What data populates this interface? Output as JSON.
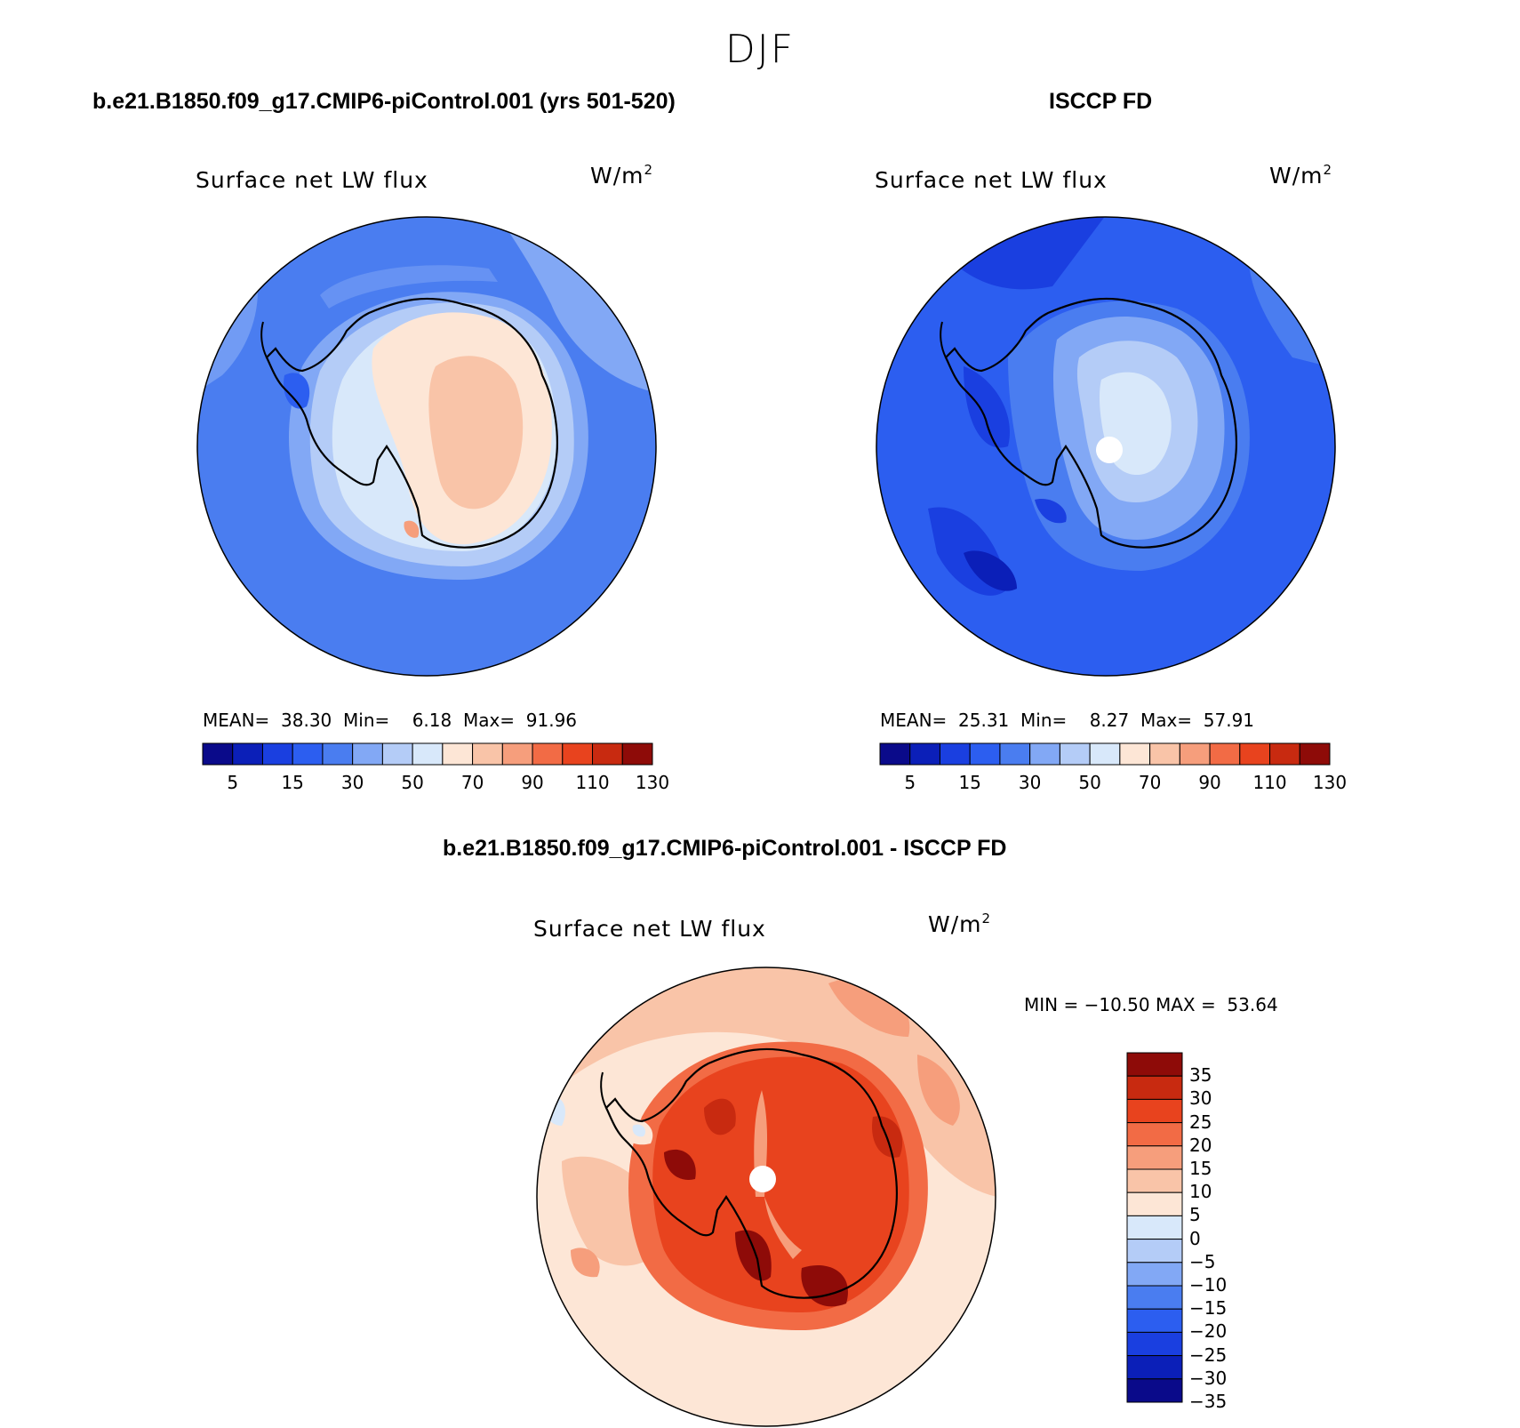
{
  "figure": {
    "season": "DJF"
  },
  "palette": {
    "levels14": [
      "#0a0a8a",
      "#0b1fb8",
      "#1a3fe0",
      "#2c5ef0",
      "#4a7df0",
      "#82a8f5",
      "#b4ccf7",
      "#d8e8fa",
      "#fde6d6",
      "#f9c4a8",
      "#f69e7c",
      "#f26b45",
      "#e8431e",
      "#c82a10",
      "#8e0b08"
    ],
    "diff": [
      "#0a0a8a",
      "#0b1fb8",
      "#1a3fe0",
      "#2c5ef0",
      "#4a7df0",
      "#82a8f5",
      "#b4ccf7",
      "#d8e8fa",
      "#fde6d6",
      "#f9c4a8",
      "#f69e7c",
      "#f26b45",
      "#e8431e",
      "#c82a10",
      "#8e0b08"
    ]
  },
  "panels": [
    {
      "id": "model",
      "case_title": "b.e21.B1850.f09_g17.CMIP6-piControl.001 (yrs 501-520)",
      "var_title": "Surface net LW flux",
      "units_base": "W/m",
      "units_exp": "2",
      "stats": {
        "mean_label": "MEAN=",
        "mean": "38.30",
        "min_label": "Min=",
        "min": "6.18",
        "max_label": "Max=",
        "max": "91.96"
      },
      "colorbar_ticks": [
        "5",
        "15",
        "30",
        "50",
        "70",
        "90",
        "110",
        "130"
      ]
    },
    {
      "id": "obs",
      "case_title": "ISCCP FD",
      "var_title": "Surface net LW flux",
      "units_base": "W/m",
      "units_exp": "2",
      "stats": {
        "mean_label": "MEAN=",
        "mean": "25.31",
        "min_label": "Min=",
        "min": "8.27",
        "max_label": "Max=",
        "max": "57.91"
      },
      "colorbar_ticks": [
        "5",
        "15",
        "30",
        "50",
        "70",
        "90",
        "110",
        "130"
      ]
    }
  ],
  "diff_panel": {
    "case_title": "b.e21.B1850.f09_g17.CMIP6-piControl.001 - ISCCP FD",
    "var_title": "Surface net LW flux",
    "units_base": "W/m",
    "units_exp": "2",
    "stats_text": "MIN = −10.50 MAX =  53.64",
    "colorbar_ticks": [
      "35",
      "30",
      "25",
      "20",
      "15",
      "10",
      "5",
      "0",
      "−5",
      "−10",
      "−15",
      "−20",
      "−25",
      "−30",
      "−35"
    ]
  }
}
